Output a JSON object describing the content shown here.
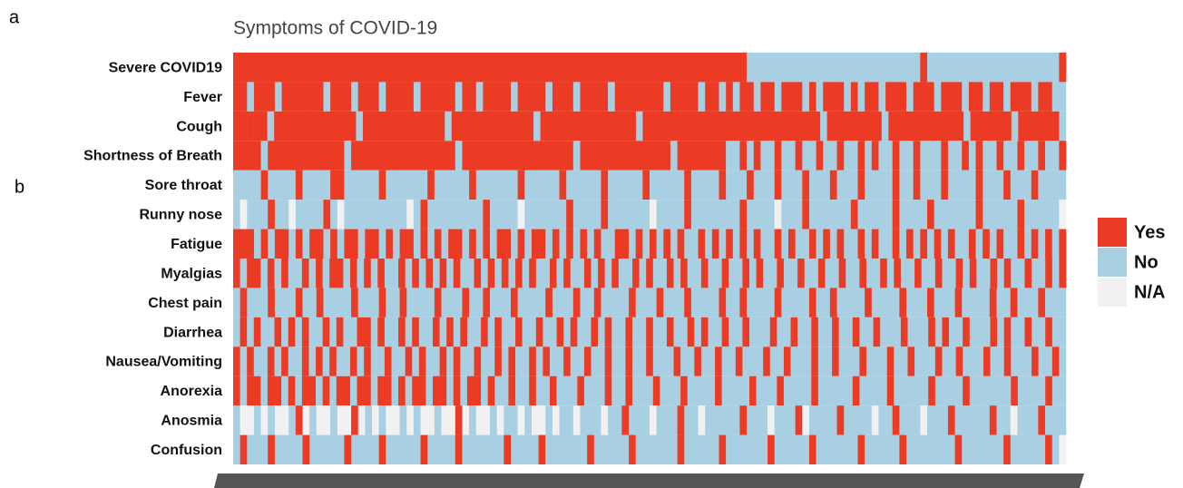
{
  "chart_data": {
    "type": "heatmap",
    "title": "Symptoms of COVID-19",
    "panel_labels": [
      "a",
      "b"
    ],
    "legend": [
      {
        "label": "Yes",
        "code": "Y",
        "color": "#ec3b24"
      },
      {
        "label": "No",
        "code": "N",
        "color": "#a9cfe3"
      },
      {
        "label": "N/A",
        "code": "-",
        "color": "#f1f1f1"
      }
    ],
    "rows": [
      {
        "name": "Severe COVID19",
        "cells": "YYYYYYYYYYYYYYYYYYYYYYYYYYYYYYYYYYYYYYYYYYYYYYYYYYYYYYYYYYYYYYYYYYYYYYYYYYNNNNNNNNNNNNNNNNNNNNNNNNNYNNNNNNNNNNNNNNNNNNNY"
      },
      {
        "name": "Fever",
        "cells": "YYNYYYNYYYYYYNYYYNYYYNYYYYNYYYYYNYYNYYYYNYYYYNYYYNYYYYNYYYYYYYNYYYYNYYNYNYYNYYNYYYNYNYYYNYNYYNYYYNYYYNYYYNYYNYYNYYYNYYNN"
      },
      {
        "name": "Cough",
        "cells": "YYYYYNYYYYYYYYYYYYNYYYYYYYYYYYYNYYYYYYYYYYYYNYYYYYYYYYYYYYYNYYYYYYYYYYYYYYYYYYYYYYYYYYNYYYYYYYYNYYYYYYYYYYYNYYYYYYNYYYYYYN"
      },
      {
        "name": "Shortness of Breath",
        "cells": "YYYYNYYYYYYYYYYYNYYYYYYYYYYYYYYYNYYYYYYYYYYYYYYYYNYYYYYYYYYYYYYNYYYYYYYNNYNYNNYNNYNNYNNYNNYNYNNYNNYNNNYNNYNYNNYNNYNNYNNY"
      },
      {
        "name": "Sore throat",
        "cells": "NNNNYNNNNYNNNNYYNNNNNYNNNNNNYNNNNNYNNNNNNYNNNNNYNNNNNYNNNNNYNNNNNYNNNNYNNNYNNNYNNNYNNNYNNNYNNNNYNNYNNNYNNNNYNNNYNNNYNNNN"
      },
      {
        "name": "Runny nose",
        "cells": "N-NNNYNN-NNNNYN-NNNNNNNNN-NYNNNNNNNNYNNNN-NNNNNNYNNNNYNNNNNN-NNNNYNNNNNNNYNNNN-NNNYNNNNNNYNNNNNYNNNNYNNNNNNYNNNNNYNNNNN-"
      },
      {
        "name": "Fatigue",
        "cells": "YYYNYNYYNYNYYNYNYYNYYNYNYYNYNYNYYNYNYNYYNYNYYNYNYNYNYNNYYNYNYNYNYNNYNYNYNYNYNNYNYNNYNYNYNNYNYNNYNYNYNYNYNNYNYNYNNYNYNYNY"
      },
      {
        "name": "Myalgias",
        "cells": "YNYYNYNYNNYNYNYYNYNYNYNNYNYNYNYNYNNYNYNYNYNYNNYNYNNYNYNYNNYNYNNYNYNNYNNYNNYNYNNYNNYNNYNNYNNYNNYNYNNYNNYNNYNYNNYNYNNYNNYNY"
      },
      {
        "name": "Chest pain",
        "cells": "NYNNNYNNNYNNYNNNNYNNNYNNYNNNNYNNNYNNYNNNYNNNNYNNNYNNYNNNNYNNNYNNNYNNNNYNNYNNNNYNNNNYNNYNNNNYNNNNYNNNYNNNYNNNNYNNYNNNYNNN"
      },
      {
        "name": "Diarrhea",
        "cells": "NYNYNNYNYNYNNYNYNNYYNYNNYNYNNYNYNYNNYNYNNYNNYNNYNYNNYNYNNYNNYNNYNNYNYNNYNNYNNNYNNYNNYNNYNNYNNYNNNYNNNYNYNNYNNNYNYNNYNNYNN"
      },
      {
        "name": "Nausea/Vomiting",
        "cells": "YNYNNYNYNNYNYNYNNYNYNNYNNYNYNNYNYNNYNNYNYNNYNYNNYNNYNNYNNYNNYNNNYNNYNNYNNYNNNYNNYNNNYNNYNNNYNNNYNNYNNNYNNYNNNYNNYNNNYNNYN"
      },
      {
        "name": "Anorexia",
        "cells": "YNYYNYYNYNYYNYNYYNYYNYYNYNYYNYYNYNYYNYNNYNNYNNYNNNYNNNYNNYNNNYNNNYNNNNYNNNNYNNNYNNNNYNNNNNYNNNNYNNNNNYNNNNYNNNNNNYNNNNYNN"
      },
      {
        "name": "Anosmia",
        "cells": "N--N-N--NY-N--N--Y-N-N--N-N--N--Y-N--N-NN-N--N-NN-NNN-NNYNNN-NNNYNN-NNNNNYNNN-NNNY-NNNNYNNNN-NNYNNN-NNNYNNNNNYNN-NNNYNNN"
      },
      {
        "name": "Confusion",
        "cells": "NYNNNYNNNNYNNNNNYNNNNYNNNNNYNNNNYNNNNNNYNNNNYNNNNNNYNNNNNYNNNNNNYNNNNNYNNNNNNYNNNNNYNNNNNNYNNNNNYNNNNNNNYNNNNNNYNNNNNYN-"
      }
    ]
  }
}
